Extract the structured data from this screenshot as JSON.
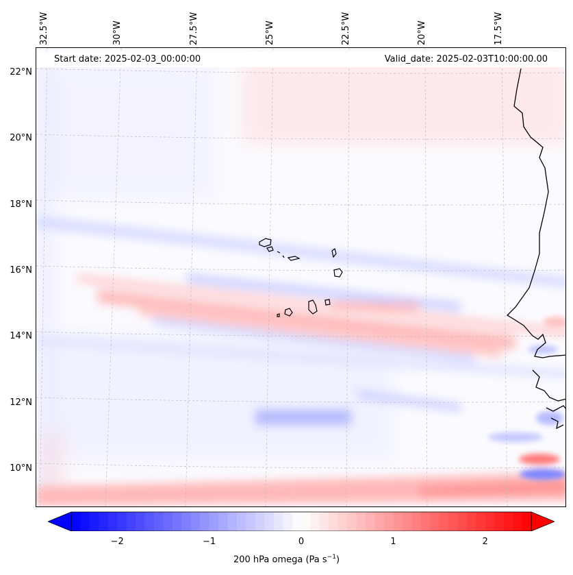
{
  "title_left": "Start date: 2025-02-03_00:00:00",
  "title_right": "Valid_date: 2025-02-03T10:00:00.00",
  "variable": "200 hPa omega",
  "units_base": "(Pa s",
  "units_exp": "−1",
  "units_close": ")",
  "lon_labels": [
    "32.5°W",
    "30°W",
    "27.5°W",
    "25°W",
    "22.5°W",
    "20°W",
    "17.5°W"
  ],
  "lat_labels": [
    "22°N",
    "20°N",
    "18°N",
    "16°N",
    "14°N",
    "12°N",
    "10°N"
  ],
  "colorbar": {
    "min": -2.5,
    "max": 2.5,
    "extend": "both",
    "ticks": [
      "−2",
      "−1",
      "0",
      "1",
      "2"
    ],
    "tick_values": [
      -2,
      -1,
      0,
      1,
      2
    ],
    "colormap": "bwr",
    "neg_color": "#0000ff",
    "zero_color": "#ffffff",
    "pos_color": "#ff0000"
  },
  "colors": {
    "coast": "#000000",
    "grid": "#bbbbbb",
    "background": "#fbfbff"
  }
}
